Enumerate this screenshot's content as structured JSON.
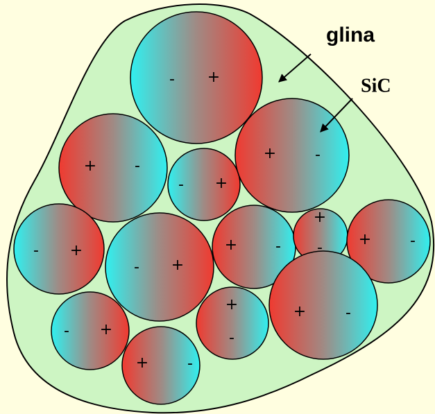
{
  "labels": {
    "matrix": "glina",
    "particle": "SiC"
  },
  "particles": [
    [
      "-",
      "+"
    ],
    [
      "+",
      "-"
    ],
    [
      "-",
      "+"
    ],
    [
      "+",
      "-"
    ],
    [
      "-",
      "+"
    ],
    [
      "-",
      "+"
    ],
    [
      "+",
      "-"
    ],
    [
      "+",
      "-"
    ],
    [
      "+",
      "-"
    ],
    [
      "-",
      "+"
    ],
    [
      "+",
      "-"
    ],
    [
      "+",
      "-"
    ],
    [
      "+",
      "-"
    ]
  ]
}
